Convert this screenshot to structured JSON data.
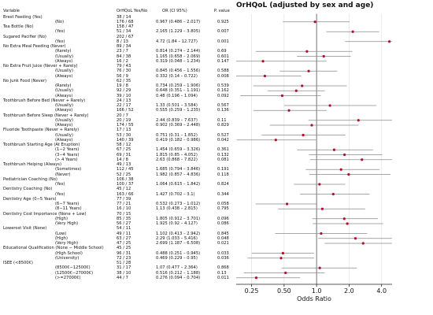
{
  "header": {
    "title": "OrHQoL (adjusted by sex and age)",
    "col_variable": "Variable",
    "col_yesno": "OrHQoL Yes/No",
    "col_or": "OR (CI 95%)",
    "col_p": "P. value"
  },
  "chart_data": {
    "type": "forest",
    "title": "OrHQoL (adjusted by sex and age)",
    "xlabel": "Odds Ratio",
    "xscale": "log",
    "xlim": [
      0.18,
      5.0
    ],
    "xticks": [
      "0.25",
      "0.50",
      "1.0",
      "2.0",
      "4.0"
    ],
    "xtick_values": [
      0.25,
      0.5,
      1.0,
      2.0,
      4.0
    ],
    "reference_line": 1.0,
    "grid": "vertical gridlines",
    "rows": [
      {
        "label": "Brest Feeding (Yes)",
        "counts": "38 / 14",
        "or_ci": "",
        "p": "",
        "or": null
      },
      {
        "label": "(No)",
        "counts": "176 / 68",
        "or_ci": "0.967 (0.486 – 2.017)",
        "p": "0.925",
        "or": 0.967,
        "lo": 0.486,
        "hi": 2.017
      },
      {
        "label": "Tea Bottle (No)",
        "counts": "158 / 47",
        "or_ci": "",
        "p": "",
        "or": null
      },
      {
        "label": "(Yes)",
        "counts": "51 / 34",
        "or_ci": "2.165 (1.229 – 3.805)",
        "p": "0.007",
        "or": 2.165,
        "lo": 1.229,
        "hi": 3.805
      },
      {
        "label": "Sugared Pacifier (No)",
        "counts": "202 / 67",
        "or_ci": "",
        "p": "",
        "or": null
      },
      {
        "label": "(Yes)",
        "counts": "8 / 13",
        "or_ci": "4.72 (1.84 – 12.727)",
        "p": "0.001",
        "or": 4.72,
        "lo": 1.84,
        "hi": 12.727
      },
      {
        "label": "No Extra Meal Feeding (Never)",
        "counts": "89 / 34",
        "or_ci": "",
        "p": "",
        "or": null
      },
      {
        "label": "(Rarely)",
        "counts": "23 / 7",
        "or_ci": "0.814 (0.274 – 2.144)",
        "p": "0.69",
        "or": 0.814,
        "lo": 0.274,
        "hi": 2.144
      },
      {
        "label": "(Usually)",
        "counts": "84 / 38",
        "or_ci": "1.165 (0.658 – 2.069)",
        "p": "0.601",
        "or": 1.165,
        "lo": 0.658,
        "hi": 2.069
      },
      {
        "label": "(Always)",
        "counts": "16 / 2",
        "or_ci": "0.319 (0.048 – 1.234)",
        "p": "0.147",
        "or": 0.319,
        "lo": 0.048,
        "hi": 1.234
      },
      {
        "label": "No Extra Fruit Juice (Never + Rarely)",
        "counts": "79 / 43",
        "or_ci": "",
        "p": "",
        "or": null
      },
      {
        "label": "(Usually)",
        "counts": "76 / 30",
        "or_ci": "0.845 (0.456 – 1.556)",
        "p": "0.588",
        "or": 0.845,
        "lo": 0.456,
        "hi": 1.556
      },
      {
        "label": "(Always)",
        "counts": "56 / 9",
        "or_ci": "0.332 (0.14 – 0.722)",
        "p": "0.008",
        "or": 0.332,
        "lo": 0.14,
        "hi": 0.722
      },
      {
        "label": "No Junk Food (Never)",
        "counts": "62 / 35",
        "or_ci": "",
        "p": "",
        "or": null
      },
      {
        "label": "(Rarely)",
        "counts": "19 / 8",
        "or_ci": "0.734 (0.259 – 1.906)",
        "p": "0.539",
        "or": 0.734,
        "lo": 0.259,
        "hi": 1.906
      },
      {
        "label": "(Usually)",
        "counts": "92 / 29",
        "or_ci": "0.648 (0.351 – 1.191)",
        "p": "0.162",
        "or": 0.648,
        "lo": 0.351,
        "hi": 1.191
      },
      {
        "label": "(Always)",
        "counts": "39 / 10",
        "or_ci": "0.48 (0.196 – 1.094)",
        "p": "0.092",
        "or": 0.48,
        "lo": 0.196,
        "hi": 1.094
      },
      {
        "label": "Toothbrush Before Bed (Never + Rarely)",
        "counts": "24 / 13",
        "or_ci": "",
        "p": "",
        "or": null
      },
      {
        "label": "(Usually)",
        "counts": "22 / 17",
        "or_ci": "1.33 (0.501 – 3.584)",
        "p": "0.567",
        "or": 1.33,
        "lo": 0.501,
        "hi": 3.584
      },
      {
        "label": "(Always)",
        "counts": "166 / 52",
        "or_ci": "0.555 (0.259 – 1.235)",
        "p": "0.136",
        "or": 0.555,
        "lo": 0.259,
        "hi": 1.235
      },
      {
        "label": "Toothbrush Before Sleep (Never + Rarely)",
        "counts": "20 / 7",
        "or_ci": "",
        "p": "",
        "or": null
      },
      {
        "label": "(Usually)",
        "counts": "20 / 19",
        "or_ci": "2.44 (0.839 – 7.637)",
        "p": "0.11",
        "or": 2.44,
        "lo": 0.839,
        "hi": 7.637
      },
      {
        "label": "(Always)",
        "counts": "174 / 55",
        "or_ci": "0.902 (0.369 – 2.448)",
        "p": "0.829",
        "or": 0.902,
        "lo": 0.369,
        "hi": 2.448
      },
      {
        "label": "Fluoride Toothpaste (Never + Rarely)",
        "counts": "17 / 13",
        "or_ci": "",
        "p": "",
        "or": null
      },
      {
        "label": "(Usually)",
        "counts": "53 / 30",
        "or_ci": "0.751 (0.31 – 1.852)",
        "p": "0.527",
        "or": 0.751,
        "lo": 0.31,
        "hi": 1.852
      },
      {
        "label": "(Always)",
        "counts": "140 / 39",
        "or_ci": "0.419 (0.182 – 0.986)",
        "p": "0.042",
        "or": 0.419,
        "lo": 0.182,
        "hi": 0.986
      },
      {
        "label": "Toothbrush Starting Age (At Eruption)",
        "counts": "58 / 12",
        "or_ci": "",
        "p": "",
        "or": null
      },
      {
        "label": "(1−2 Years)",
        "counts": "67 / 25",
        "or_ci": "1.454 (0.659 – 3.326)",
        "p": "0.361",
        "or": 1.454,
        "lo": 0.659,
        "hi": 3.326
      },
      {
        "label": "(3−4 Years)",
        "counts": "69 / 31",
        "or_ci": "1.815 (0.85 – 4.052)",
        "p": "0.132",
        "or": 1.815,
        "lo": 0.85,
        "hi": 4.052
      },
      {
        "label": "(> 4 Years)",
        "counts": "14 / 8",
        "or_ci": "2.63 (0.868 – 7.822)",
        "p": "0.081",
        "or": 2.63,
        "lo": 0.868,
        "hi": 7.822
      },
      {
        "label": "Toothbrush Helping (Always)",
        "counts": "49 / 13",
        "or_ci": "",
        "p": "",
        "or": null
      },
      {
        "label": "(Sometimes)",
        "counts": "112 / 45",
        "or_ci": "1.685 (0.794 – 3.846)",
        "p": "0.191",
        "or": 1.685,
        "lo": 0.794,
        "hi": 3.846
      },
      {
        "label": "(Never)",
        "counts": "52 / 25",
        "or_ci": "1.982 (0.857 – 4.836)",
        "p": "0.118",
        "or": 1.982,
        "lo": 0.857,
        "hi": 4.836
      },
      {
        "label": "Pediatrician Coaching (No)",
        "counts": "106 / 38",
        "or_ci": "",
        "p": "",
        "or": null
      },
      {
        "label": "(Yes)",
        "counts": "100 / 37",
        "or_ci": "1.064 (0.615 – 1.842)",
        "p": "0.824",
        "or": 1.064,
        "lo": 0.615,
        "hi": 1.842
      },
      {
        "label": "Dentistry Coaching (No)",
        "counts": "45 / 12",
        "or_ci": "",
        "p": "",
        "or": null
      },
      {
        "label": "(Yes)",
        "counts": "163 / 66",
        "or_ci": "1.427 (0.702 – 3.1)",
        "p": "0.344",
        "or": 1.427,
        "lo": 0.702,
        "hi": 3.1
      },
      {
        "label": "Dentistry Age (0−5 Years)",
        "counts": "77 / 39",
        "or_ci": "",
        "p": "",
        "or": null
      },
      {
        "label": "(6−7 Years)",
        "counts": "77 / 21",
        "or_ci": "0.532 (0.273 – 1.012)",
        "p": "0.058",
        "or": 0.532,
        "lo": 0.273,
        "hi": 1.012
      },
      {
        "label": "(8−11 Years)",
        "counts": "16 / 10",
        "or_ci": "1.13 (0.438 – 2.815)",
        "p": "0.795",
        "or": 1.13,
        "lo": 0.438,
        "hi": 2.815
      },
      {
        "label": "Dentistry Cost Importance (None + Low)",
        "counts": "70 / 15",
        "or_ci": "",
        "p": "",
        "or": null
      },
      {
        "label": "(High)",
        "counts": "85 / 35",
        "or_ci": "1.805 (0.912 – 3.701)",
        "p": "0.096",
        "or": 1.805,
        "lo": 0.912,
        "hi": 3.701
      },
      {
        "label": "(Very High)",
        "counts": "56 / 27",
        "or_ci": "1.925 (0.92 – 4.127)",
        "p": "0.086",
        "or": 1.925,
        "lo": 0.92,
        "hi": 4.127
      },
      {
        "label": "Lowerost Visit (None)",
        "counts": "54 / 11",
        "or_ci": "",
        "p": "",
        "or": null
      },
      {
        "label": "(Low)",
        "counts": "49 / 11",
        "or_ci": "1.102 (0.413 – 2.942)",
        "p": "0.845",
        "or": 1.102,
        "lo": 0.413,
        "hi": 2.942
      },
      {
        "label": "(High)",
        "counts": "63 / 27",
        "or_ci": "2.29 (1.033 – 5.416)",
        "p": "0.048",
        "or": 2.29,
        "lo": 1.033,
        "hi": 5.416
      },
      {
        "label": "(Very High)",
        "counts": "47 / 25",
        "or_ci": "2.699 (1.187 – 6.508)",
        "p": "0.021",
        "or": 2.699,
        "lo": 1.187,
        "hi": 6.508
      },
      {
        "label": "Educational Qualification (None − Middle School)",
        "counts": "45 / 25",
        "or_ci": "",
        "p": "",
        "or": null
      },
      {
        "label": "(High School)",
        "counts": "96 / 31",
        "or_ci": "0.488 (0.251 – 0.945)",
        "p": "0.033",
        "or": 0.488,
        "lo": 0.251,
        "hi": 0.945
      },
      {
        "label": "(University)",
        "counts": "72 / 23",
        "or_ci": "0.469 (0.229 – 0.95)",
        "p": "0.036",
        "or": 0.469,
        "lo": 0.229,
        "hi": 0.95
      },
      {
        "label": "ISEE (<8500€)",
        "counts": "51 / 28",
        "or_ci": "",
        "p": "",
        "or": null
      },
      {
        "label": "(8500€−12500€)",
        "counts": "31 / 17",
        "or_ci": "1.07 (0.477 – 2.364)",
        "p": "0.868",
        "or": 1.07,
        "lo": 0.477,
        "hi": 2.364
      },
      {
        "label": "(12500€−27000€)",
        "counts": "38 / 10",
        "or_ci": "0.516 (0.212 – 1.188)",
        "p": "0.13",
        "or": 0.516,
        "lo": 0.212,
        "hi": 1.188
      },
      {
        "label": "(>=27000€)",
        "counts": "44 / 7",
        "or_ci": "0.276 (0.094 – 0.704)",
        "p": "0.011",
        "or": 0.276,
        "lo": 0.094,
        "hi": 0.704
      }
    ]
  },
  "colors": {
    "point": "#b0102a",
    "ci_line": "#8a8a8a",
    "grid": "#e6e6e6",
    "reference": "#555555",
    "text": "#111111"
  }
}
